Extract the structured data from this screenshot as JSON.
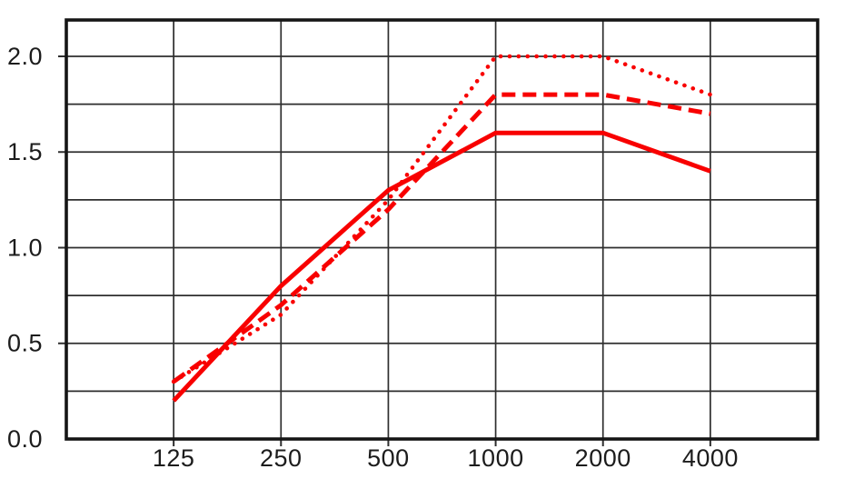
{
  "chart_data": {
    "type": "line",
    "title": "",
    "xlabel": "",
    "ylabel": "",
    "categories": [
      "125",
      "250",
      "500",
      "1000",
      "2000",
      "4000"
    ],
    "series": [
      {
        "name": "solid-line",
        "style": "solid",
        "values": [
          0.2,
          0.8,
          1.3,
          1.6,
          1.6,
          1.4
        ]
      },
      {
        "name": "dashed-line",
        "style": "dashed",
        "values": [
          0.3,
          0.7,
          1.2,
          1.8,
          1.8,
          1.7
        ]
      },
      {
        "name": "dotted-line",
        "style": "dotted",
        "values": [
          0.3,
          0.65,
          1.25,
          2.0,
          2.0,
          1.8
        ]
      }
    ],
    "y_ticks": [
      {
        "value": 0.0,
        "label": "0.0"
      },
      {
        "value": 0.5,
        "label": "0.5"
      },
      {
        "value": 1.0,
        "label": "1.0"
      },
      {
        "value": 1.5,
        "label": "1.5"
      },
      {
        "value": 2.0,
        "label": "2.0"
      }
    ],
    "y_grid_step": 0.25,
    "ylim": [
      0,
      2.19
    ],
    "grid": true,
    "legend_position": "none",
    "colors": {
      "series": "#f80000",
      "grid": "#2e2e2e",
      "border": "#151515",
      "text": "#1c1c1c",
      "background": "#ffffff"
    }
  }
}
